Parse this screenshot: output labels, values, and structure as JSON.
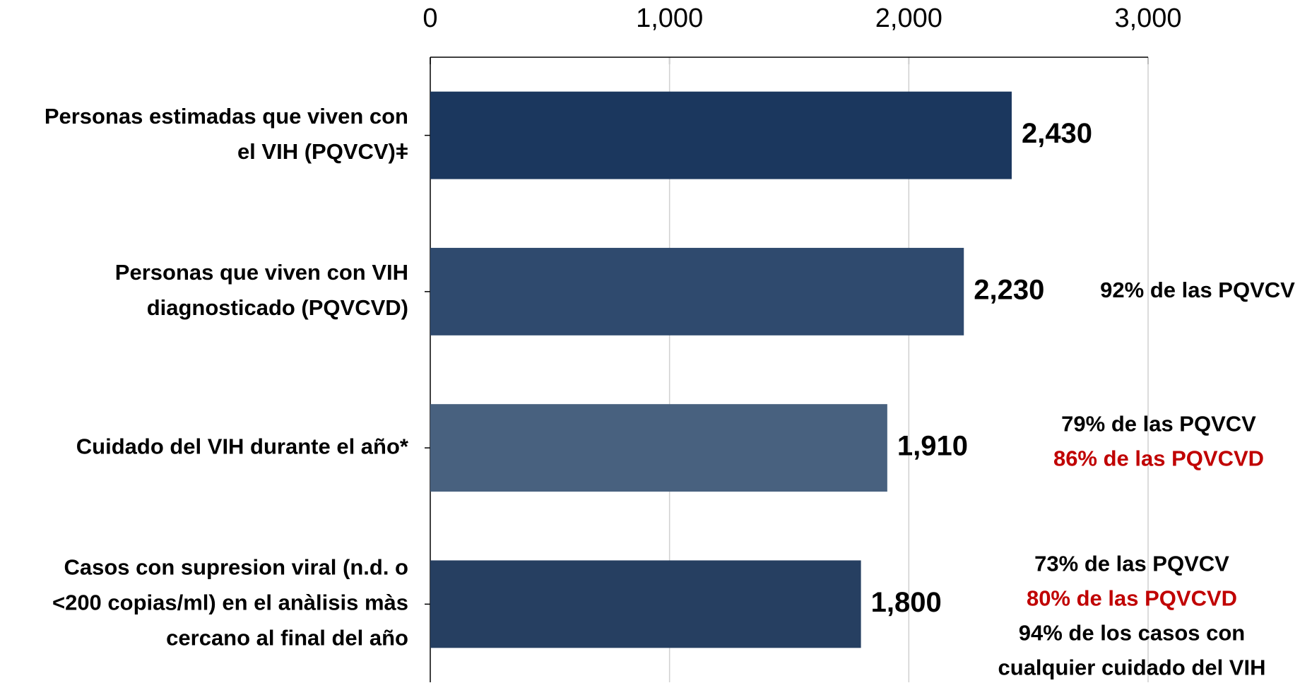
{
  "chart_data": {
    "type": "bar",
    "orientation": "horizontal",
    "categories": [
      [
        "Personas estimadas que viven con",
        "el VIH (PQVCV)ǂ"
      ],
      [
        "Personas que viven con VIH",
        "diagnosticado (PQVCVD)"
      ],
      [
        "Cuidado del VIH durante el año*"
      ],
      [
        "Casos con supresion viral (n.d. o",
        "<200 copias/ml) en el anàlisis màs",
        "cercano al final del año"
      ]
    ],
    "values": [
      2430,
      2230,
      1910,
      1800
    ],
    "value_labels": [
      "2,430",
      "2,230",
      "1,910",
      "1,800"
    ],
    "colors": [
      "#1b375e",
      "#2f4a6e",
      "#48617f",
      "#263f61"
    ],
    "xlim": [
      0,
      3000
    ],
    "xticks": [
      0,
      {
        "value": 1000,
        "label": "1,000"
      },
      {
        "value": 2000,
        "label": "2,000"
      },
      {
        "value": 3000,
        "label": "3,000"
      }
    ],
    "grid": true,
    "annotations": [
      [],
      [
        {
          "text": "92% de las PQVCV",
          "color": "#000000"
        }
      ],
      [
        {
          "text": "79% de las PQVCV",
          "color": "#000000"
        },
        {
          "text": "86% de las PQVCVD",
          "color": "#c00000"
        }
      ],
      [
        {
          "text": "73% de las PQVCV",
          "color": "#000000"
        },
        {
          "text": "80% de las PQVCVD",
          "color": "#c00000"
        },
        {
          "text": "94% de los casos con",
          "color": "#000000"
        },
        {
          "text": "cualquier cuidado del VIH",
          "color": "#000000"
        }
      ]
    ]
  }
}
